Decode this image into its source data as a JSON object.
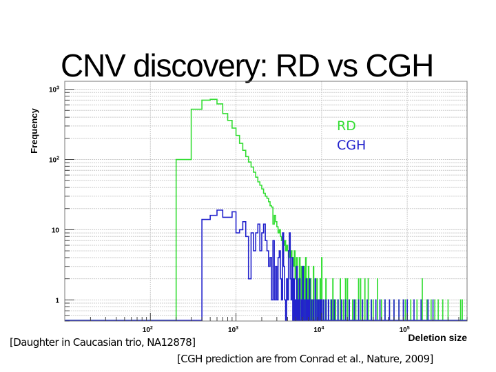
{
  "slide": {
    "title": "CNV discovery: RD vs CGH",
    "footnote_left": "[Daughter in Caucasian trio, NA12878]",
    "footnote_right": "[CGH prediction are from Conrad et al., Nature, 2009]"
  },
  "chart_data": {
    "type": "histogram",
    "xscale": "log",
    "yscale": "log",
    "xlabel": "Deletion size",
    "ylabel": "Frequency",
    "xlim": [
      10,
      500000
    ],
    "ylim": [
      0.5,
      1300
    ],
    "bin_width": 100,
    "grid": true,
    "x_ticks": [
      {
        "value": 100,
        "base": "10",
        "exp": "2"
      },
      {
        "value": 1000,
        "base": "10",
        "exp": "3"
      },
      {
        "value": 10000,
        "base": "10",
        "exp": "4"
      },
      {
        "value": 100000,
        "base": "10",
        "exp": "5"
      }
    ],
    "y_ticks": [
      {
        "value": 1,
        "base": "1",
        "exp": ""
      },
      {
        "value": 10,
        "base": "10",
        "exp": ""
      },
      {
        "value": 100,
        "base": "10",
        "exp": "2"
      },
      {
        "value": 1000,
        "base": "10",
        "exp": "3"
      }
    ],
    "legend_position": "top-right",
    "series": [
      {
        "name": "RD",
        "color": "#33dd33",
        "bins": [
          [
            200,
            100
          ],
          [
            300,
            520
          ],
          [
            400,
            700
          ],
          [
            500,
            720
          ],
          [
            600,
            620
          ],
          [
            700,
            450
          ],
          [
            800,
            360
          ],
          [
            900,
            280
          ],
          [
            1000,
            220
          ],
          [
            1100,
            170
          ],
          [
            1200,
            135
          ],
          [
            1300,
            110
          ],
          [
            1400,
            92
          ],
          [
            1500,
            78
          ],
          [
            1600,
            66
          ],
          [
            1700,
            56
          ],
          [
            1800,
            48
          ],
          [
            1900,
            43
          ],
          [
            2000,
            38
          ],
          [
            2100,
            33
          ],
          [
            2200,
            30
          ],
          [
            2300,
            28
          ],
          [
            2400,
            25
          ],
          [
            2500,
            22
          ],
          [
            2600,
            21
          ],
          [
            2700,
            12
          ],
          [
            2800,
            16
          ],
          [
            2900,
            13
          ],
          [
            3000,
            11
          ],
          [
            3100,
            9
          ],
          [
            3200,
            10
          ],
          [
            3300,
            8
          ],
          [
            3400,
            7
          ],
          [
            3500,
            8
          ],
          [
            3600,
            6
          ],
          [
            3700,
            7
          ],
          [
            3800,
            5
          ],
          [
            3900,
            6
          ],
          [
            4000,
            5
          ],
          [
            4100,
            4
          ],
          [
            4200,
            6
          ],
          [
            4300,
            4
          ],
          [
            4400,
            5
          ],
          [
            4500,
            3
          ],
          [
            4600,
            4
          ],
          [
            4700,
            3
          ],
          [
            4800,
            5
          ],
          [
            4900,
            2
          ],
          [
            5000,
            3
          ],
          [
            5100,
            4
          ],
          [
            5300,
            2
          ],
          [
            5500,
            4
          ],
          [
            5800,
            3
          ],
          [
            6000,
            2
          ],
          [
            6200,
            3
          ],
          [
            6500,
            4
          ],
          [
            6800,
            2
          ],
          [
            7000,
            3
          ],
          [
            7400,
            2
          ],
          [
            7700,
            1
          ],
          [
            8000,
            3
          ],
          [
            8400,
            1
          ],
          [
            8800,
            2
          ],
          [
            9200,
            1
          ],
          [
            9600,
            2
          ],
          [
            10000,
            4
          ],
          [
            10600,
            1
          ],
          [
            11200,
            2
          ],
          [
            12000,
            1
          ],
          [
            12800,
            1
          ],
          [
            13500,
            2
          ],
          [
            14500,
            1
          ],
          [
            15500,
            1
          ],
          [
            16500,
            2
          ],
          [
            18000,
            1
          ],
          [
            19000,
            2
          ],
          [
            20000,
            2
          ],
          [
            21000,
            1
          ],
          [
            23000,
            1
          ],
          [
            25000,
            1
          ],
          [
            27000,
            2
          ],
          [
            28500,
            2
          ],
          [
            30000,
            1
          ],
          [
            32000,
            2
          ],
          [
            35000,
            2
          ],
          [
            38000,
            1
          ],
          [
            40000,
            1
          ],
          [
            45000,
            2
          ],
          [
            50000,
            1
          ],
          [
            55000,
            1
          ],
          [
            62000,
            1
          ],
          [
            70000,
            1
          ],
          [
            80000,
            1
          ],
          [
            95000,
            1
          ],
          [
            110000,
            1
          ],
          [
            130000,
            1
          ],
          [
            150000,
            2
          ],
          [
            170000,
            1
          ],
          [
            190000,
            1
          ],
          [
            210000,
            1
          ],
          [
            230000,
            1
          ],
          [
            260000,
            1
          ],
          [
            300000,
            1
          ],
          [
            420000,
            1
          ],
          [
            440000,
            1
          ]
        ]
      },
      {
        "name": "CGH",
        "color": "#2222cc",
        "bins": [
          [
            400,
            14
          ],
          [
            500,
            16
          ],
          [
            600,
            19
          ],
          [
            700,
            15
          ],
          [
            800,
            15
          ],
          [
            900,
            18
          ],
          [
            1000,
            9
          ],
          [
            1100,
            10
          ],
          [
            1200,
            13
          ],
          [
            1300,
            8
          ],
          [
            1400,
            2
          ],
          [
            1500,
            9
          ],
          [
            1600,
            5
          ],
          [
            1700,
            9
          ],
          [
            1800,
            12
          ],
          [
            1900,
            5
          ],
          [
            2000,
            9
          ],
          [
            2100,
            12
          ],
          [
            2200,
            7
          ],
          [
            2300,
            5
          ],
          [
            2400,
            3
          ],
          [
            2500,
            4
          ],
          [
            2600,
            1
          ],
          [
            2700,
            7
          ],
          [
            2800,
            1
          ],
          [
            2900,
            3
          ],
          [
            3000,
            1
          ],
          [
            3100,
            4
          ],
          [
            3200,
            5
          ],
          [
            3300,
            2
          ],
          [
            3400,
            1
          ],
          [
            3500,
            9
          ],
          [
            3600,
            3
          ],
          [
            3700,
            1
          ],
          [
            3900,
            2
          ],
          [
            4000,
            1
          ],
          [
            4100,
            5
          ],
          [
            4200,
            9
          ],
          [
            4300,
            2
          ],
          [
            4400,
            1
          ],
          [
            4500,
            4
          ],
          [
            4700,
            2
          ],
          [
            4900,
            1
          ],
          [
            5100,
            3
          ],
          [
            5300,
            1
          ],
          [
            5500,
            2
          ],
          [
            5800,
            1
          ],
          [
            6000,
            3
          ],
          [
            6300,
            1
          ],
          [
            6600,
            2
          ],
          [
            6900,
            1
          ],
          [
            7200,
            2
          ],
          [
            7600,
            1
          ],
          [
            8000,
            1
          ],
          [
            8400,
            2
          ],
          [
            8800,
            1
          ],
          [
            9200,
            1
          ],
          [
            9600,
            1
          ],
          [
            10000,
            1
          ],
          [
            10500,
            1
          ],
          [
            11200,
            1
          ],
          [
            12000,
            1
          ],
          [
            13000,
            1
          ],
          [
            14000,
            1
          ],
          [
            15500,
            1
          ],
          [
            17000,
            1
          ],
          [
            19000,
            1
          ],
          [
            21000,
            1
          ],
          [
            24000,
            1
          ],
          [
            27000,
            1
          ],
          [
            30000,
            1
          ],
          [
            34000,
            1
          ],
          [
            38000,
            1
          ],
          [
            43000,
            1
          ],
          [
            48000,
            1
          ],
          [
            55000,
            1
          ],
          [
            62000,
            1
          ],
          [
            70000,
            1
          ],
          [
            80000,
            1
          ],
          [
            90000,
            1
          ],
          [
            100000,
            1
          ],
          [
            120000,
            1
          ],
          [
            145000,
            1
          ],
          [
            175000,
            1
          ],
          [
            200000,
            1
          ]
        ]
      }
    ]
  }
}
